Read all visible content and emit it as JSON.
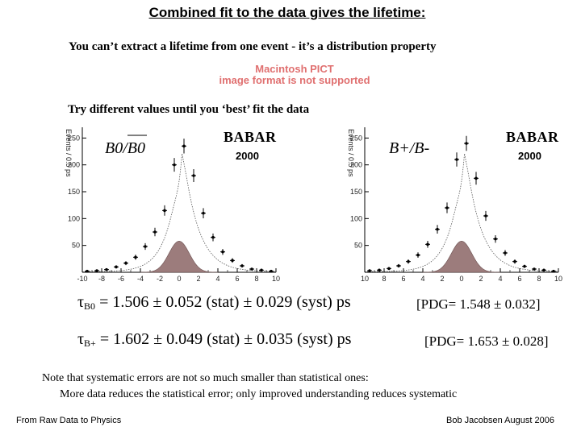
{
  "title": "Combined fit to the data gives the lifetime:",
  "subtitle": "You can’t extract a lifetime from one event - it’s a distribution property",
  "image_notice": "Macintosh PICT image format is not supported",
  "try_text": "Try different values until you ‘best’ fit the data",
  "plots": [
    {
      "label_main": "B0/B0",
      "experiment": "BABAR",
      "year": "2000",
      "ylabel": "Events / 0.5 ps",
      "y_ticks": [
        "250",
        "200",
        "150",
        "100",
        "50"
      ],
      "x_ticks": [
        "-10",
        "-8",
        "-6",
        "-4",
        "-2",
        "0",
        "2",
        "4",
        "6",
        "8",
        "10"
      ]
    },
    {
      "label_main": "B+/B-",
      "experiment": "BABAR",
      "year": "2000",
      "ylabel": "Events / 0.5 ps",
      "y_ticks": [
        "250",
        "200",
        "150",
        "100",
        "50"
      ],
      "x_ticks": [
        "10",
        "8",
        "6",
        "4",
        "2",
        "0",
        "2",
        "4",
        "6",
        "8",
        "10"
      ]
    }
  ],
  "chart_data": [
    {
      "type": "scatter",
      "xlim": [
        -10,
        10
      ],
      "ylim": [
        0,
        270
      ],
      "x": [
        -9.5,
        -8.5,
        -7.5,
        -6.5,
        -5.5,
        -4.5,
        -3.5,
        -2.5,
        -1.5,
        -0.5,
        0.5,
        1.5,
        2.5,
        3.5,
        4.5,
        5.5,
        6.5,
        7.5,
        8.5,
        9.5
      ],
      "series": [
        {
          "values": [
            2,
            3,
            5,
            10,
            17,
            28,
            48,
            75,
            115,
            200,
            235,
            180,
            110,
            65,
            38,
            22,
            12,
            6,
            4,
            2
          ]
        }
      ]
    },
    {
      "type": "scatter",
      "xlim": [
        -10,
        10
      ],
      "ylim": [
        0,
        270
      ],
      "x": [
        -9.5,
        -8.5,
        -7.5,
        -6.5,
        -5.5,
        -4.5,
        -3.5,
        -2.5,
        -1.5,
        -0.5,
        0.5,
        1.5,
        2.5,
        3.5,
        4.5,
        5.5,
        6.5,
        7.5,
        8.5,
        9.5
      ],
      "series": [
        {
          "values": [
            3,
            4,
            7,
            12,
            20,
            32,
            52,
            80,
            120,
            210,
            240,
            175,
            105,
            62,
            36,
            20,
            11,
            6,
            4,
            2
          ]
        }
      ]
    }
  ],
  "results": {
    "b0_sym": "τ",
    "b0_sub": "B0",
    "b0_text": "= 1.506 ± 0.052 (stat) ± 0.029 (syst) ps",
    "b0_pdg": "[PDG= 1.548 ± 0.032]",
    "bp_sym": "τ",
    "bp_sub": "B+",
    "bp_text": "= 1.602 ± 0.049 (stat) ± 0.035 (syst) ps",
    "bp_pdg": "[PDG= 1.653 ± 0.028]"
  },
  "note_line1": "Note that systematic errors are not so much smaller than statistical ones:",
  "note_line2": "More data reduces the statistical error; only improved understanding reduces systematic",
  "footer_left": "From Raw Data to Physics",
  "footer_right": "Bob Jacobsen August 2006",
  "colors": {
    "signal_fill": "#9c7c7c",
    "signal_edge": "#6b4f4f"
  }
}
